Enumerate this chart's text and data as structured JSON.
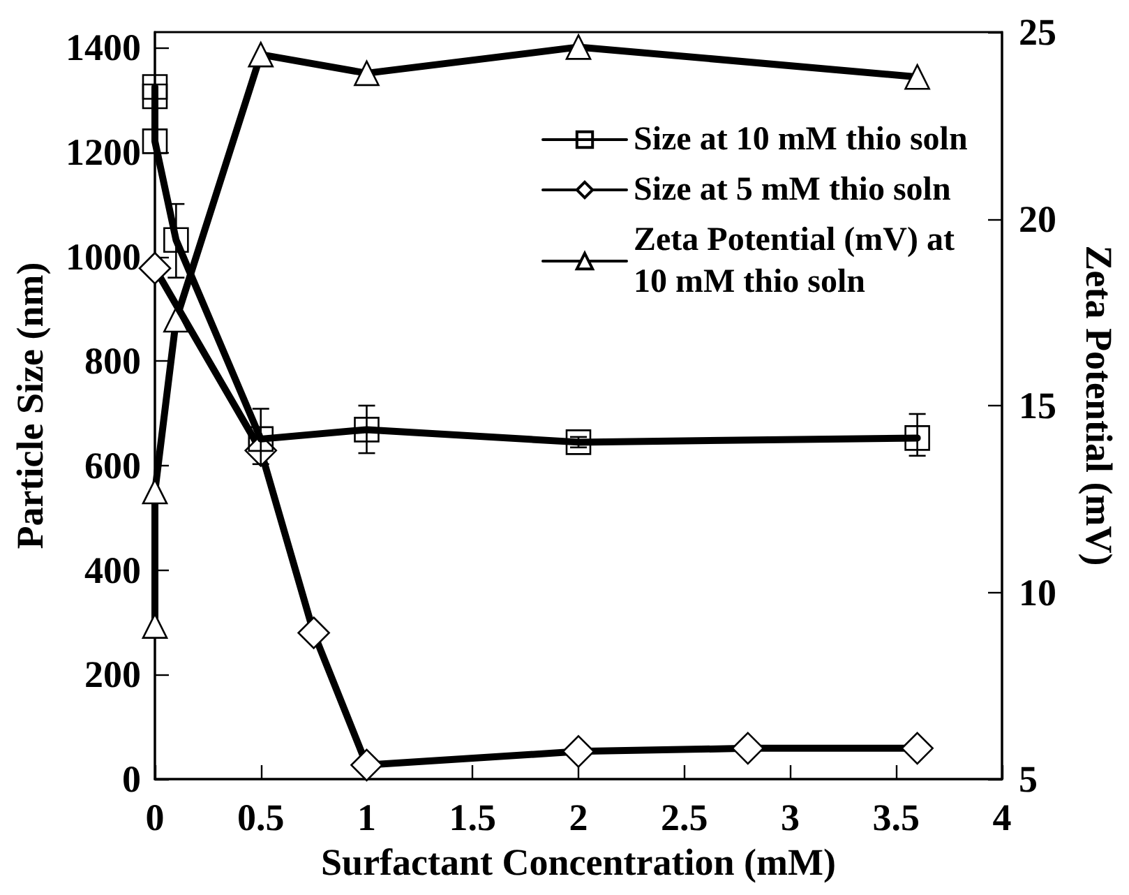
{
  "chart_data": {
    "type": "line",
    "xlabel": "Surfactant Concentration (mM)",
    "ylabel": "Particle Size (nm)",
    "y2label": "Zeta Potential (mV)",
    "xlim": [
      0,
      4
    ],
    "ylim": [
      0,
      1430
    ],
    "y2lim": [
      5,
      25
    ],
    "xticks": [
      0,
      0.5,
      1,
      1.5,
      2,
      2.5,
      3,
      3.5,
      4
    ],
    "yticks": [
      0,
      200,
      400,
      600,
      800,
      1000,
      1200,
      1400
    ],
    "y2ticks": [
      5,
      10,
      15,
      20,
      25
    ],
    "legend": "top right",
    "grid": false,
    "line_style": "solid",
    "series": [
      {
        "name": "Size at 10 mM thio soln",
        "color": "#000000",
        "marker": "square",
        "x": [
          0,
          0,
          0,
          0.1,
          0.5,
          1,
          2,
          3.6
        ],
        "values": [
          1325,
          1307,
          1221,
          1032,
          651,
          669,
          645,
          653
        ],
        "errors": [
          null,
          null,
          null,
          [
            960,
            1101
          ],
          [
            603,
            709
          ],
          [
            624,
            715
          ],
          [
            635,
            655
          ],
          [
            619,
            699
          ]
        ]
      },
      {
        "name": "Size at 5 mM thio soln",
        "color": "#000000",
        "marker": "diamond",
        "x": [
          0,
          0.5,
          0.75,
          1,
          2,
          2.8,
          3.6
        ],
        "values": [
          978,
          629,
          280,
          27,
          53,
          59,
          59
        ]
      },
      {
        "name": "Zeta Potential (mV) at 10 mM thio soln",
        "color": "#000000",
        "marker": "triangle",
        "axis": "y2",
        "x": [
          0,
          0,
          0.1,
          0.5,
          1,
          2,
          3.6
        ],
        "values": [
          9.1,
          12.7,
          17.3,
          24.4,
          23.9,
          24.6,
          23.8
        ]
      }
    ]
  }
}
